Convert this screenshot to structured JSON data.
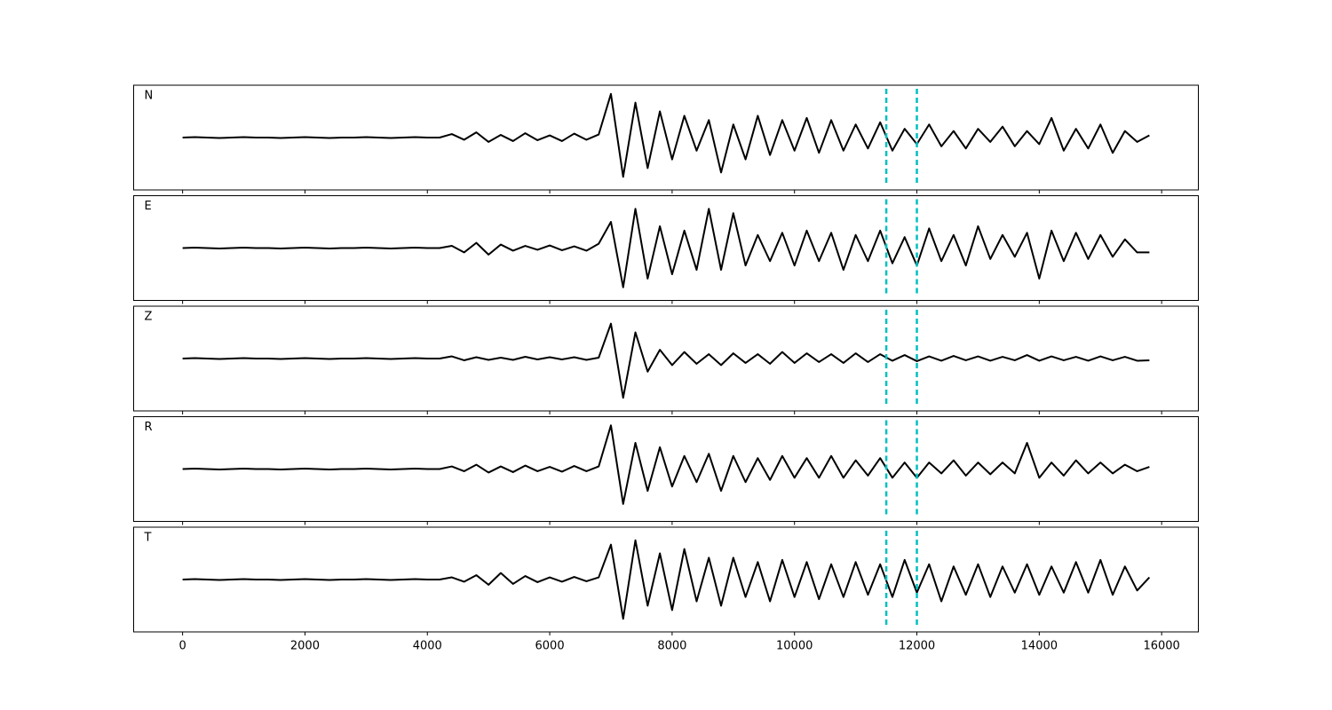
{
  "chart_data": {
    "type": "line",
    "subplots": true,
    "x": [
      0,
      200,
      400,
      600,
      800,
      1000,
      1200,
      1400,
      1600,
      1800,
      2000,
      2200,
      2400,
      2600,
      2800,
      3000,
      3200,
      3400,
      3600,
      3800,
      4000,
      4200,
      4400,
      4600,
      4800,
      5000,
      5200,
      5400,
      5600,
      5800,
      6000,
      6200,
      6400,
      6600,
      6800,
      7000,
      7200,
      7400,
      7600,
      7800,
      8000,
      8200,
      8400,
      8600,
      8800,
      9000,
      9200,
      9400,
      9600,
      9800,
      10000,
      10200,
      10400,
      10600,
      10800,
      11000,
      11200,
      11400,
      11600,
      11800,
      12000,
      12200,
      12400,
      12600,
      12800,
      13000,
      13200,
      13400,
      13600,
      13800,
      14000,
      14200,
      14400,
      14600,
      14800,
      15000,
      15200,
      15400,
      15600,
      15800
    ],
    "series": [
      {
        "name": "N",
        "color": "#000000",
        "values": [
          0,
          0.01,
          0,
          -0.01,
          0,
          0.01,
          0,
          0,
          -0.01,
          0,
          0.01,
          0,
          -0.01,
          0,
          0,
          0.01,
          0,
          -0.01,
          0,
          0.01,
          0,
          0,
          0.08,
          -0.05,
          0.12,
          -0.1,
          0.06,
          -0.08,
          0.1,
          -0.06,
          0.05,
          -0.08,
          0.09,
          -0.05,
          0.07,
          1.0,
          -0.9,
          0.8,
          -0.7,
          0.6,
          -0.5,
          0.5,
          -0.3,
          0.4,
          -0.8,
          0.3,
          -0.5,
          0.5,
          -0.4,
          0.4,
          -0.3,
          0.45,
          -0.35,
          0.4,
          -0.3,
          0.3,
          -0.25,
          0.35,
          -0.3,
          0.2,
          -0.15,
          0.3,
          -0.2,
          0.15,
          -0.25,
          0.2,
          -0.1,
          0.25,
          -0.2,
          0.15,
          -0.15,
          0.45,
          -0.3,
          0.2,
          -0.25,
          0.3,
          -0.35,
          0.15,
          -0.1,
          0.05
        ]
      },
      {
        "name": "E",
        "color": "#000000",
        "values": [
          0,
          0.01,
          0,
          -0.01,
          0,
          0.01,
          0,
          0,
          -0.01,
          0,
          0.01,
          0,
          -0.01,
          0,
          0,
          0.01,
          0,
          -0.01,
          0,
          0.01,
          0,
          0,
          0.05,
          -0.1,
          0.12,
          -0.15,
          0.08,
          -0.06,
          0.05,
          -0.04,
          0.06,
          -0.05,
          0.04,
          -0.06,
          0.1,
          0.6,
          -0.9,
          0.9,
          -0.7,
          0.5,
          -0.6,
          0.4,
          -0.5,
          0.9,
          -0.5,
          0.8,
          -0.4,
          0.3,
          -0.3,
          0.35,
          -0.4,
          0.4,
          -0.3,
          0.35,
          -0.5,
          0.3,
          -0.3,
          0.4,
          -0.35,
          0.25,
          -0.4,
          0.45,
          -0.3,
          0.3,
          -0.4,
          0.5,
          -0.25,
          0.3,
          -0.2,
          0.35,
          -0.7,
          0.4,
          -0.3,
          0.35,
          -0.25,
          0.3,
          -0.2,
          0.2,
          -0.1,
          -0.1
        ]
      },
      {
        "name": "Z",
        "color": "#000000",
        "values": [
          0,
          0.01,
          0,
          -0.01,
          0,
          0.01,
          0,
          0,
          -0.01,
          0,
          0.01,
          0,
          -0.01,
          0,
          0,
          0.01,
          0,
          -0.01,
          0,
          0.01,
          0,
          0,
          0.05,
          -0.04,
          0.03,
          -0.03,
          0.02,
          -0.03,
          0.04,
          -0.02,
          0.03,
          -0.02,
          0.03,
          -0.03,
          0.02,
          0.8,
          -0.9,
          0.6,
          -0.3,
          0.2,
          -0.15,
          0.15,
          -0.12,
          0.1,
          -0.15,
          0.12,
          -0.1,
          0.1,
          -0.12,
          0.15,
          -0.1,
          0.12,
          -0.08,
          0.1,
          -0.1,
          0.12,
          -0.08,
          0.1,
          -0.05,
          0.08,
          -0.06,
          0.05,
          -0.05,
          0.06,
          -0.04,
          0.05,
          -0.05,
          0.04,
          -0.04,
          0.08,
          -0.05,
          0.05,
          -0.04,
          0.04,
          -0.05,
          0.05,
          -0.04,
          0.04,
          -0.05,
          -0.04
        ]
      },
      {
        "name": "R",
        "color": "#000000",
        "values": [
          0,
          0.01,
          0,
          -0.01,
          0,
          0.01,
          0,
          0,
          -0.01,
          0,
          0.01,
          0,
          -0.01,
          0,
          0,
          0.01,
          0,
          -0.01,
          0,
          0.01,
          0,
          0,
          0.06,
          -0.05,
          0.1,
          -0.08,
          0.06,
          -0.07,
          0.08,
          -0.05,
          0.05,
          -0.06,
          0.07,
          -0.05,
          0.06,
          1.0,
          -0.8,
          0.6,
          -0.5,
          0.5,
          -0.4,
          0.3,
          -0.3,
          0.35,
          -0.5,
          0.3,
          -0.3,
          0.25,
          -0.25,
          0.3,
          -0.2,
          0.25,
          -0.2,
          0.3,
          -0.2,
          0.2,
          -0.15,
          0.25,
          -0.2,
          0.15,
          -0.2,
          0.15,
          -0.1,
          0.2,
          -0.15,
          0.15,
          -0.12,
          0.15,
          -0.1,
          0.6,
          -0.2,
          0.15,
          -0.15,
          0.2,
          -0.1,
          0.15,
          -0.1,
          0.1,
          -0.05,
          0.05
        ]
      },
      {
        "name": "T",
        "color": "#000000",
        "values": [
          0,
          0.01,
          0,
          -0.01,
          0,
          0.01,
          0,
          0,
          -0.01,
          0,
          0.01,
          0,
          -0.01,
          0,
          0,
          0.01,
          0,
          -0.01,
          0,
          0.01,
          0,
          0,
          0.05,
          -0.05,
          0.1,
          -0.12,
          0.15,
          -0.1,
          0.08,
          -0.06,
          0.05,
          -0.05,
          0.06,
          -0.04,
          0.05,
          0.8,
          -0.9,
          0.9,
          -0.6,
          0.6,
          -0.7,
          0.7,
          -0.5,
          0.5,
          -0.6,
          0.5,
          -0.4,
          0.4,
          -0.5,
          0.45,
          -0.4,
          0.4,
          -0.45,
          0.35,
          -0.4,
          0.4,
          -0.35,
          0.35,
          -0.4,
          0.45,
          -0.3,
          0.35,
          -0.5,
          0.3,
          -0.35,
          0.35,
          -0.4,
          0.3,
          -0.3,
          0.35,
          -0.35,
          0.3,
          -0.3,
          0.4,
          -0.3,
          0.45,
          -0.35,
          0.3,
          -0.25,
          0.05
        ]
      }
    ],
    "xlim": [
      -800,
      16600
    ],
    "xticks": [
      0,
      2000,
      4000,
      6000,
      8000,
      10000,
      12000,
      14000,
      16000
    ],
    "ylim": [
      -1.2,
      1.2
    ],
    "vlines": [
      11500,
      12000
    ],
    "vline_color": "#00bfbf"
  }
}
